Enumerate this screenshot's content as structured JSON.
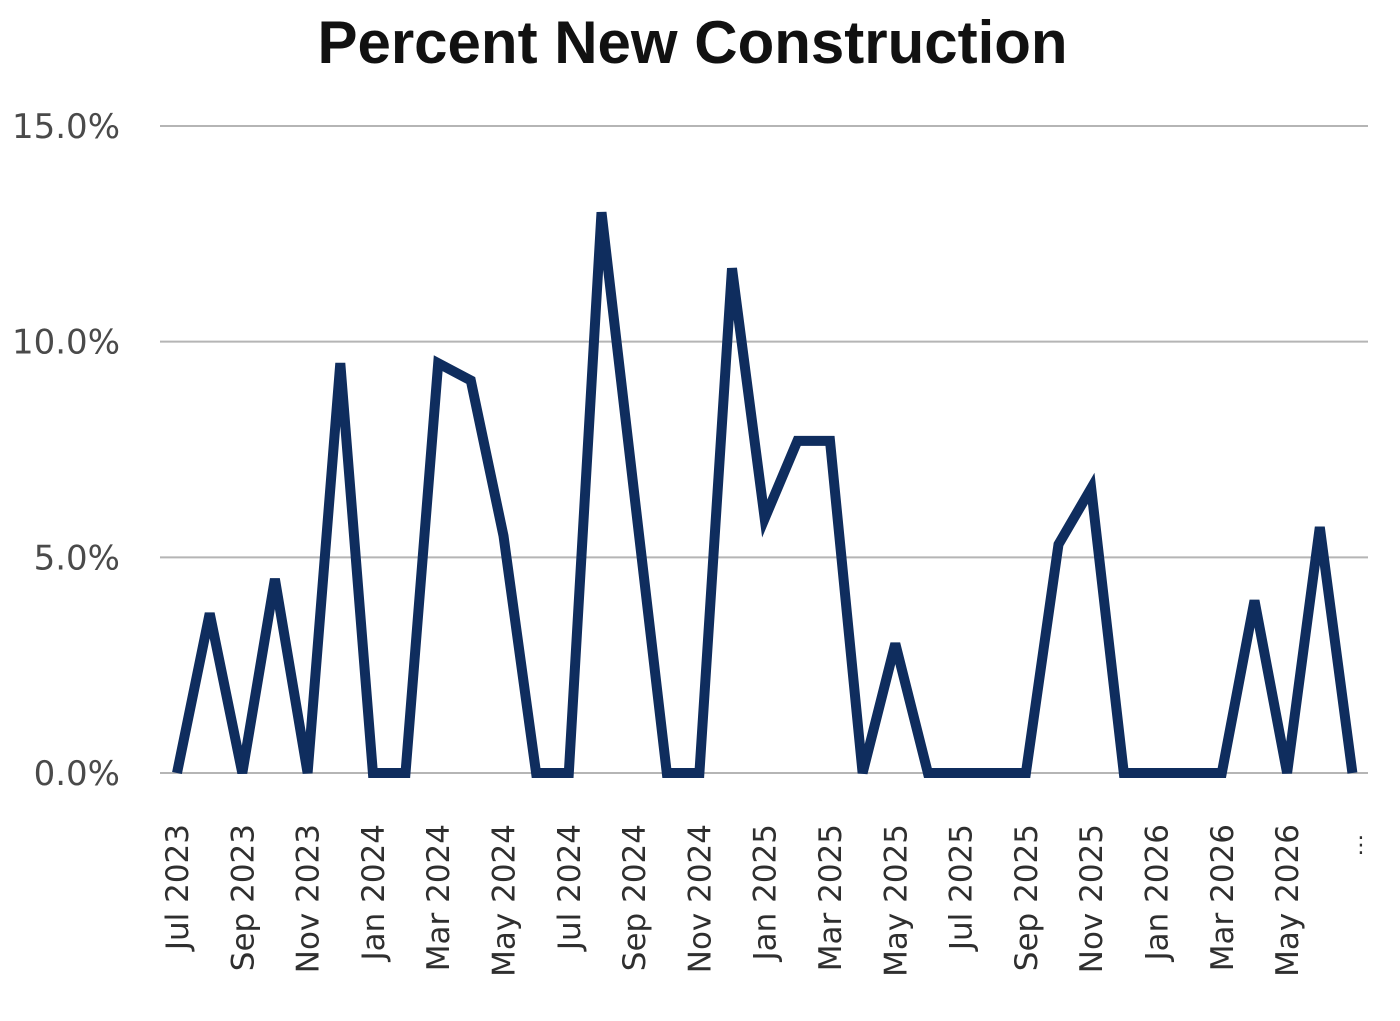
{
  "chart_data": {
    "type": "line",
    "title": "Percent New Construction",
    "xlabel": "",
    "ylabel": "",
    "ylim": [
      0,
      15
    ],
    "yticks": [
      "0.0%",
      "5.0%",
      "10.0%",
      "15.0%"
    ],
    "ytick_values": [
      0,
      5,
      10,
      15
    ],
    "grid": true,
    "x": [
      "Jul 2023",
      "Aug 2023",
      "Sep 2023",
      "Oct 2023",
      "Nov 2023",
      "Dec 2023",
      "Jan 2024",
      "Feb 2024",
      "Mar 2024",
      "Apr 2024",
      "May 2024",
      "Jun 2024",
      "Jul 2024",
      "Aug 2024",
      "Sep 2024",
      "Oct 2024",
      "Nov 2024",
      "Dec 2024",
      "Jan 2025",
      "Feb 2025",
      "Mar 2025",
      "Apr 2025",
      "May 2025",
      "Jun 2025",
      "Jul 2025",
      "Aug 2025",
      "Sep 2025",
      "Oct 2025",
      "Nov 2025",
      "Dec 2025",
      "Jan 2026",
      "Feb 2026",
      "Mar 2026",
      "Apr 2026",
      "May 2026",
      "Jun 2026",
      "Jul 2026"
    ],
    "x_tick_labels": [
      "Jul 2023",
      "Sep 2023",
      "Nov 2023",
      "Jan 2024",
      "Mar 2024",
      "May 2024",
      "Jul 2024",
      "Sep 2024",
      "Nov 2024",
      "Jan 2025",
      "Mar 2025",
      "May 2025",
      "Jul 2025",
      "Sep 2025",
      "Nov 2025",
      "Jan 2026",
      "Mar 2026",
      "May 2026"
    ],
    "x_tick_overflow": "⋮",
    "series": [
      {
        "color": "#0f2d5e",
        "values": [
          0,
          3.7,
          0,
          4.5,
          0,
          9.5,
          0,
          0,
          9.5,
          9.1,
          5.5,
          0,
          0,
          13.0,
          6.5,
          0,
          0,
          11.7,
          5.9,
          7.7,
          7.7,
          0,
          3.0,
          0,
          0,
          0,
          0,
          5.3,
          6.6,
          0,
          0,
          0,
          0,
          4.0,
          0,
          5.7,
          0
        ]
      }
    ]
  }
}
